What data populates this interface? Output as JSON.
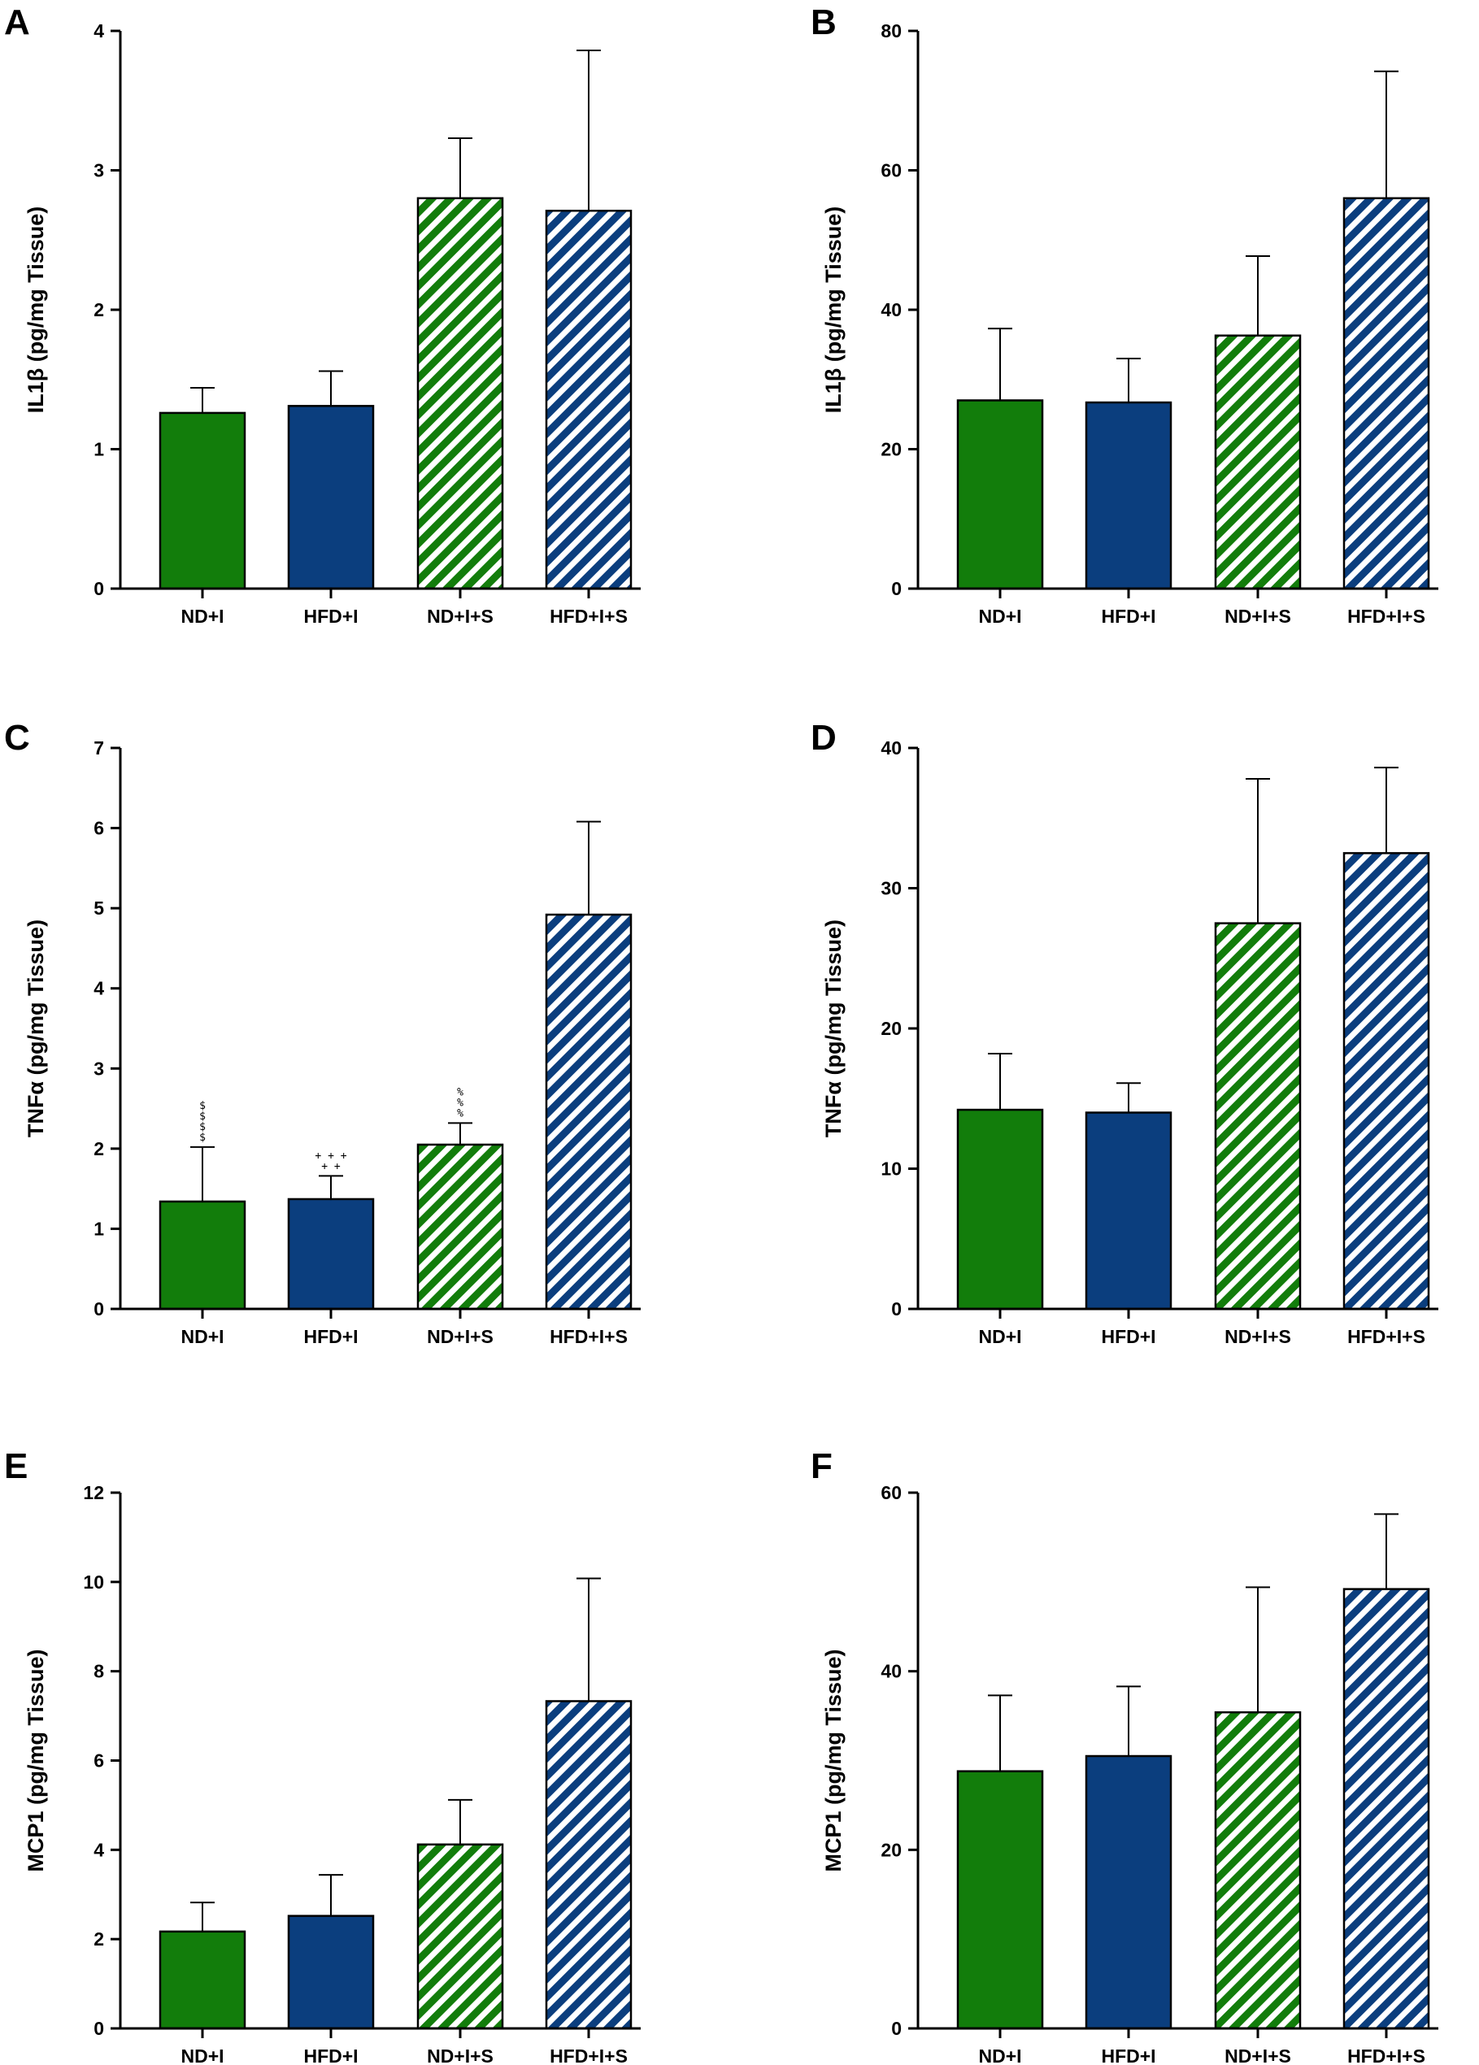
{
  "colors": {
    "green": "#127d0b",
    "blue": "#0b3e7e",
    "axis": "#000000",
    "hatch_bg": "#ffffff"
  },
  "chart_data": [
    {
      "panel": "A",
      "type": "bar",
      "ylabel": "IL1β (pg/mg Tissue)",
      "ylim": [
        0,
        4
      ],
      "yticks": [
        "0",
        "1",
        "2",
        "3",
        "4"
      ],
      "categories": [
        "ND+I",
        "HFD+I",
        "ND+I+S",
        "HFD+I+S"
      ],
      "values": [
        1.26,
        1.31,
        2.8,
        2.71
      ],
      "errors": [
        0.18,
        0.25,
        0.43,
        1.15
      ],
      "annotations": []
    },
    {
      "panel": "B",
      "type": "bar",
      "ylabel": "IL1β (pg/mg Tissue)",
      "ylim": [
        0,
        80
      ],
      "yticks": [
        "0",
        "20",
        "40",
        "60",
        "80"
      ],
      "categories": [
        "ND+I",
        "HFD+I",
        "ND+I+S",
        "HFD+I+S"
      ],
      "values": [
        27.0,
        26.7,
        36.3,
        56.0
      ],
      "errors": [
        10.3,
        6.3,
        11.4,
        18.2
      ],
      "annotations": []
    },
    {
      "panel": "C",
      "type": "bar",
      "ylabel": "TNFα (pg/mg Tissue)",
      "ylim": [
        0,
        7
      ],
      "yticks": [
        "0",
        "1",
        "2",
        "3",
        "4",
        "5",
        "6",
        "7"
      ],
      "categories": [
        "ND+I",
        "HFD+I",
        "ND+I+S",
        "HFD+I+S"
      ],
      "values": [
        1.34,
        1.37,
        2.05,
        4.92
      ],
      "errors": [
        0.68,
        0.29,
        0.27,
        1.16
      ],
      "annotations": [
        {
          "index": 0,
          "marks": [
            "$",
            "$",
            "$",
            "$"
          ]
        },
        {
          "index": 1,
          "marks": [
            "+ + +",
            "+ +"
          ]
        },
        {
          "index": 2,
          "marks": [
            "%",
            "%",
            "%"
          ]
        }
      ]
    },
    {
      "panel": "D",
      "type": "bar",
      "ylabel": "TNFα (pg/mg Tissue)",
      "ylim": [
        0,
        40
      ],
      "yticks": [
        "0",
        "10",
        "20",
        "30",
        "40"
      ],
      "categories": [
        "ND+I",
        "HFD+I",
        "ND+I+S",
        "HFD+I+S"
      ],
      "values": [
        14.2,
        14.0,
        27.5,
        32.5
      ],
      "errors": [
        4.0,
        2.1,
        10.3,
        6.1
      ],
      "annotations": []
    },
    {
      "panel": "E",
      "type": "bar",
      "ylabel": "MCP1 (pg/mg Tissue)",
      "ylim": [
        0,
        12
      ],
      "yticks": [
        "0",
        "2",
        "4",
        "6",
        "8",
        "10",
        "12"
      ],
      "categories": [
        "ND+I",
        "HFD+I",
        "ND+I+S",
        "HFD+I+S"
      ],
      "values": [
        2.17,
        2.52,
        4.12,
        7.33
      ],
      "errors": [
        0.65,
        0.92,
        1.0,
        2.75
      ],
      "annotations": []
    },
    {
      "panel": "F",
      "type": "bar",
      "ylabel": "MCP1 (pg/mg Tissue)",
      "ylim": [
        0,
        60
      ],
      "yticks": [
        "0",
        "20",
        "40",
        "60"
      ],
      "categories": [
        "ND+I",
        "HFD+I",
        "ND+I+S",
        "HFD+I+S"
      ],
      "values": [
        28.8,
        30.5,
        35.4,
        49.2
      ],
      "errors": [
        8.5,
        7.8,
        14.0,
        8.4
      ],
      "annotations": []
    }
  ]
}
